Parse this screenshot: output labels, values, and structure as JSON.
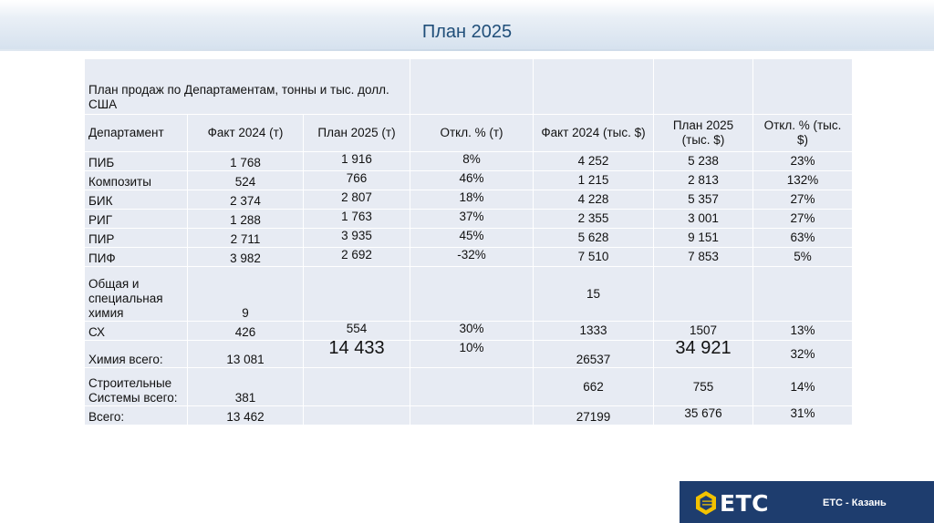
{
  "page": {
    "title": "План 2025"
  },
  "table": {
    "caption": "План продаж по Департаментам, тонны и тыс. долл. США",
    "headers": [
      "Департамент",
      "Факт 2024 (т)",
      "План 2025 (т)",
      "Откл. % (т)",
      "Факт 2024 (тыс. $)",
      "План 2025 (тыс. $)",
      "Откл. % (тыс. $)"
    ],
    "rows": [
      [
        "ПИБ",
        "1 768",
        "1 916",
        "8%",
        "4 252",
        "5 238",
        "23%"
      ],
      [
        "Композиты",
        "524",
        "766",
        "46%",
        "1 215",
        "2 813",
        "132%"
      ],
      [
        "БИК",
        "2 374",
        "2 807",
        "18%",
        "4 228",
        "5 357",
        "27%"
      ],
      [
        "РИГ",
        "1 288",
        "1 763",
        "37%",
        "2 355",
        "3 001",
        "27%"
      ],
      [
        "ПИР",
        "2 711",
        "3 935",
        "45%",
        "5 628",
        "9 151",
        "63%"
      ],
      [
        "ПИФ",
        "3 982",
        "2 692",
        "-32%",
        "7 510",
        "7 853",
        "5%"
      ],
      [
        "Общая и специальная химия",
        "9",
        "",
        "",
        "15",
        "",
        ""
      ],
      [
        "СХ",
        "426",
        "554",
        "30%",
        "1333",
        "1507",
        "13%"
      ],
      [
        "Химия всего:",
        "13 081",
        "14 433",
        "10%",
        "26537",
        "34 921",
        "32%"
      ],
      [
        "Строительные Системы всего:",
        "381",
        "",
        "",
        "662",
        "755",
        "14%"
      ],
      [
        "Всего:",
        "13 462",
        "",
        "",
        "27199",
        "35 676",
        "31%"
      ]
    ]
  },
  "footer": {
    "logo_text": "ETC",
    "company": "ETC - Казань",
    "brand_color": "#1e3d6e",
    "logo_accent": "#f2c200"
  }
}
